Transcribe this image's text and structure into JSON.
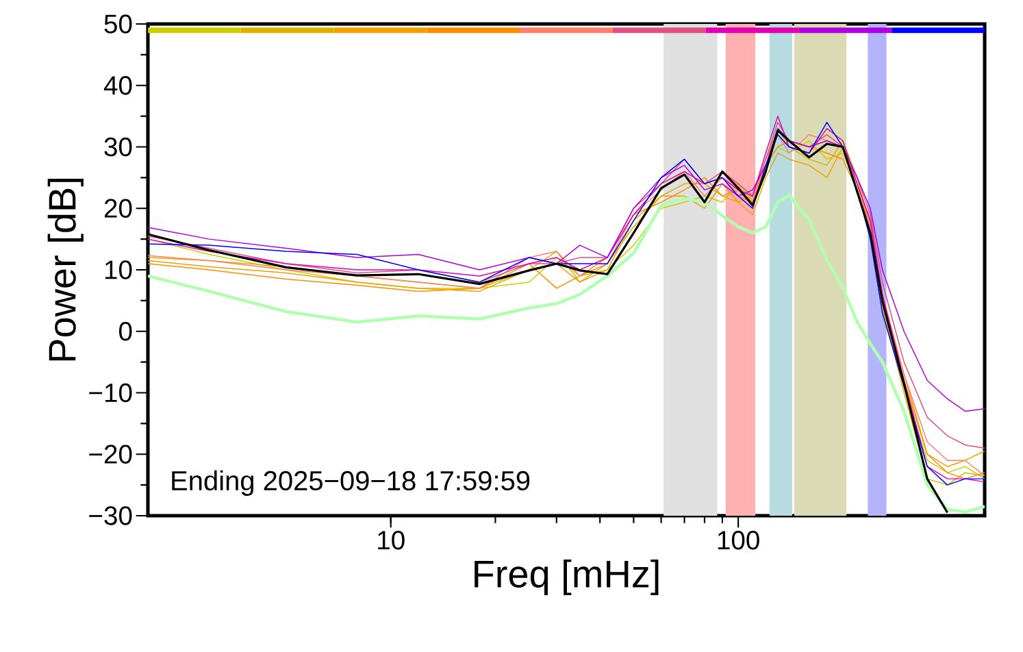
{
  "chart_data": {
    "type": "line",
    "xlabel": "Freq [mHz]",
    "ylabel": "Power [dB]",
    "log": "x",
    "xlim": [
      2,
      512
    ],
    "ylim": [
      -30,
      50
    ],
    "xticks": [
      10,
      100
    ],
    "yticks": [
      {
        "value": -30,
        "label": "−30"
      },
      {
        "value": -20,
        "label": "−20"
      },
      {
        "value": -10,
        "label": "−10"
      },
      0,
      10,
      20,
      30,
      40,
      50
    ],
    "annotations": [
      "Ending 2025−09−18 17:59:59"
    ],
    "bands": [
      {
        "axis": "x",
        "from": 61,
        "to": 87,
        "color": "#e0e0e0"
      },
      {
        "axis": "x",
        "from": 92,
        "to": 112,
        "color": "#ffb0b0"
      },
      {
        "axis": "x",
        "from": 123,
        "to": 143,
        "color": "#b6dcdf"
      },
      {
        "axis": "x",
        "from": 145,
        "to": 205,
        "color": "#dadab4"
      },
      {
        "axis": "x",
        "from": 236,
        "to": 267,
        "color": "#b4b4fa"
      }
    ],
    "x": [
      2,
      3,
      5,
      8,
      12,
      18,
      25,
      30,
      35,
      42,
      50,
      60,
      70,
      80,
      90,
      100,
      110,
      120,
      130,
      140,
      160,
      180,
      200,
      220,
      240,
      260,
      300,
      350,
      400,
      450,
      512
    ],
    "series": [
      {
        "color": "#cccc00",
        "values": [
          15,
          12.5,
          10,
          8,
          7,
          7,
          8,
          12,
          9,
          10,
          14,
          20,
          21,
          22,
          21,
          24,
          21,
          27,
          30,
          29,
          31,
          28,
          29,
          24,
          15,
          3,
          -9,
          -21,
          -23,
          -22,
          -24
        ]
      },
      {
        "color": "#ddb000",
        "values": [
          12,
          11.5,
          10.5,
          9,
          8,
          7,
          10,
          13,
          8,
          11,
          17,
          22,
          24,
          24,
          22,
          21,
          22,
          28,
          33,
          30,
          28,
          27,
          31,
          25,
          17,
          4,
          -10,
          -24,
          -25,
          -23,
          -23.5
        ]
      },
      {
        "color": "#f0a000",
        "values": [
          11.5,
          10.5,
          9.5,
          8,
          7,
          6.5,
          10,
          11,
          8,
          10,
          18,
          22,
          22,
          20,
          24,
          21,
          19,
          25,
          29,
          28,
          27,
          25,
          30,
          24,
          18,
          5,
          -8,
          -20,
          -22,
          -21,
          -19.5
        ]
      },
      {
        "color": "#ff8c00",
        "values": [
          11,
          10,
          8.5,
          7.5,
          6.5,
          7,
          11,
          7,
          9,
          12,
          19,
          21,
          23,
          25,
          22,
          23,
          21,
          27,
          30,
          31,
          30,
          29,
          28,
          23,
          17,
          5,
          -7,
          -20,
          -23,
          -24,
          -23
        ]
      },
      {
        "color": "#ff7f6a",
        "values": [
          12.3,
          11.5,
          10,
          9,
          8,
          7,
          12,
          13,
          9,
          11,
          19,
          23,
          26,
          22,
          25,
          22,
          21,
          28,
          32,
          29,
          32,
          31,
          30,
          24,
          17,
          6,
          -7,
          -18,
          -21,
          -21,
          -23.5
        ]
      },
      {
        "color": "#e05080",
        "values": [
          15.5,
          13.5,
          11,
          9.5,
          10,
          8,
          11,
          11,
          12,
          12,
          20,
          24,
          28,
          24,
          26,
          24,
          22,
          28,
          34,
          31,
          30,
          32,
          30,
          25,
          19,
          8,
          -5,
          -14,
          -17,
          -18.5,
          -19
        ]
      },
      {
        "color": "#e000b0",
        "values": [
          15,
          13,
          11,
          10,
          10,
          9,
          11,
          12,
          10,
          12,
          19,
          24,
          26,
          24,
          25,
          23,
          22,
          29,
          35,
          30,
          29,
          33,
          31,
          24,
          18,
          6,
          -8,
          -22,
          -24,
          -24,
          -24.5
        ]
      },
      {
        "color": "#b000e0",
        "values": [
          16.9,
          15,
          13.5,
          12,
          12.5,
          10,
          12,
          11,
          14,
          12,
          20,
          25,
          27,
          23,
          24,
          22,
          23,
          27,
          33,
          31,
          30,
          31,
          30,
          25,
          20,
          10,
          0,
          -8,
          -11,
          -13,
          -12.6
        ]
      },
      {
        "color": "#0000ff",
        "values": [
          14.2,
          14,
          13,
          12.5,
          10,
          8,
          12,
          11,
          11,
          11,
          18,
          25,
          28,
          24,
          25,
          22,
          20,
          27,
          32,
          30,
          29,
          34,
          30,
          23,
          15,
          3,
          -9,
          -22,
          -25,
          -24,
          -24
        ]
      },
      {
        "color": "#b0ffb0",
        "values": [
          9,
          6.5,
          3.2,
          1.5,
          2.5,
          2,
          3.8,
          4.5,
          6,
          9,
          12.7,
          20.5,
          21.6,
          21,
          18.8,
          17,
          16,
          17,
          21,
          22.1,
          18.2,
          11.6,
          7.1,
          1.5,
          -2,
          -5,
          -13,
          -25,
          -29,
          -29.4,
          -28.5
        ]
      },
      {
        "color": "#000000",
        "values": [
          15.8,
          13.2,
          10.4,
          9.1,
          9.3,
          7.7,
          9.9,
          11,
          9.9,
          9.3,
          16,
          23.3,
          25.5,
          21,
          26,
          23.3,
          20.5,
          26,
          32.7,
          31,
          28.3,
          30.5,
          30,
          22.7,
          16,
          4.9,
          -8.5,
          -24,
          -29.5,
          null,
          null
        ]
      }
    ]
  }
}
